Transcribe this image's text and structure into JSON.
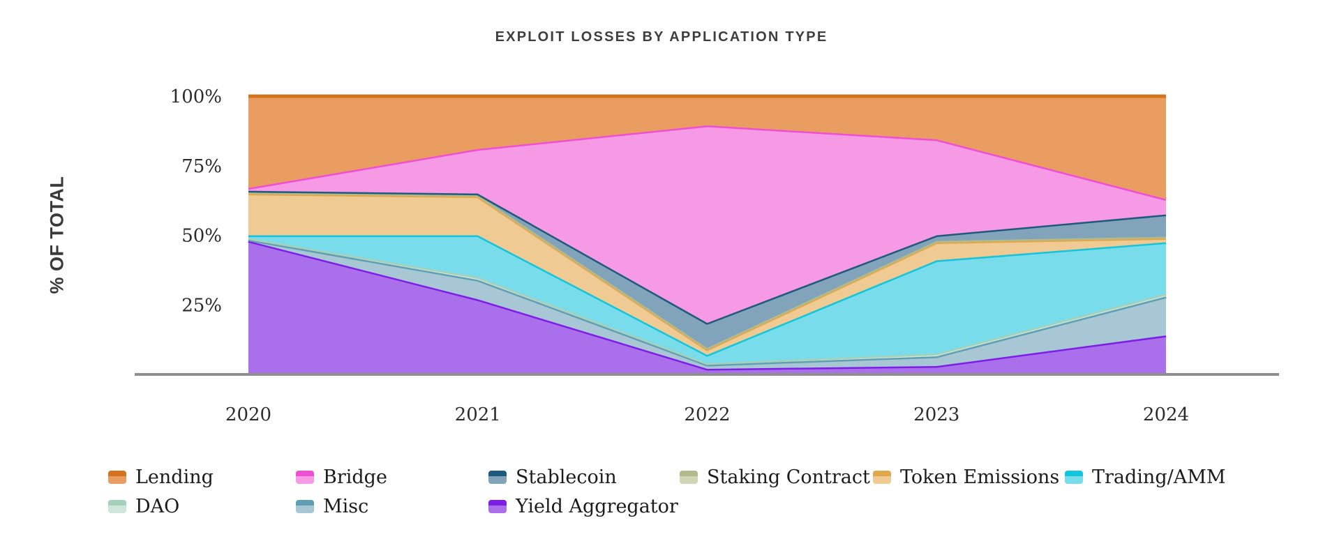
{
  "title": "EXPLOIT LOSSES BY APPLICATION TYPE",
  "y_axis": {
    "label": "% OF TOTAL",
    "ticks": [
      {
        "label": "100%",
        "value": 100
      },
      {
        "label": "75%",
        "value": 75
      },
      {
        "label": "50%",
        "value": 50
      },
      {
        "label": "25%",
        "value": 25
      }
    ]
  },
  "x_axis": {
    "ticks": [
      "2020",
      "2021",
      "2022",
      "2023",
      "2024"
    ]
  },
  "legend": {
    "rows": [
      [
        "Lending",
        "Bridge",
        "Stablecoin",
        "Staking Contract",
        "Token Emissions",
        "Trading/AMM"
      ],
      [
        "DAO",
        "Misc",
        "Yield Aggregator"
      ]
    ]
  },
  "chart_data": {
    "type": "area",
    "stacked": true,
    "units": "percent of total",
    "title": "EXPLOIT LOSSES BY APPLICATION TYPE",
    "ylabel": "% OF TOTAL",
    "xlabel": "",
    "ylim": [
      0,
      100
    ],
    "grid": "horizontal",
    "legend_position": "bottom",
    "categories": [
      "2020",
      "2021",
      "2022",
      "2023",
      "2024"
    ],
    "stack_order_note": "series listed bottom-to-top of the stack; legend displays reverse order",
    "series": [
      {
        "name": "Yield Aggregator",
        "stroke": "#7d1de7",
        "fill": "#aa70ec",
        "values": [
          48,
          27,
          2,
          3,
          14
        ]
      },
      {
        "name": "Misc",
        "stroke": "#5e9fb3",
        "fill": "#a6c7d3",
        "values": [
          0.5,
          7,
          1.5,
          3.5,
          14
        ]
      },
      {
        "name": "DAO",
        "stroke": "#a5d1ba",
        "fill": "#cfe7da",
        "values": [
          0.5,
          1,
          0.5,
          1,
          1
        ]
      },
      {
        "name": "Trading/AMM",
        "stroke": "#12c4dc",
        "fill": "#79dcea",
        "values": [
          1,
          15,
          3,
          33.5,
          18.5
        ]
      },
      {
        "name": "Token Emissions",
        "stroke": "#e3a74b",
        "fill": "#efca92",
        "values": [
          15,
          14,
          2,
          6.5,
          1.5
        ]
      },
      {
        "name": "Staking Contract",
        "stroke": "#b2b98b",
        "fill": "#d0d5b3",
        "values": [
          0.5,
          0.5,
          0.5,
          0.5,
          0.5
        ]
      },
      {
        "name": "Stablecoin",
        "stroke": "#1e5a7d",
        "fill": "#82a4ba",
        "values": [
          0.5,
          0.5,
          9,
          2,
          8
        ]
      },
      {
        "name": "Bridge",
        "stroke": "#ee4fd4",
        "fill": "#f69ae6",
        "values": [
          1,
          16,
          71,
          34.5,
          5.5
        ]
      },
      {
        "name": "Lending",
        "stroke": "#d4731d",
        "fill": "#e99d61",
        "values": [
          33,
          19,
          10.5,
          15.5,
          37
        ]
      }
    ],
    "colors": {
      "gridline": "#e7e7e7",
      "axis_line": "#8f8f8f",
      "tick_text": "#2b2b2b"
    }
  }
}
